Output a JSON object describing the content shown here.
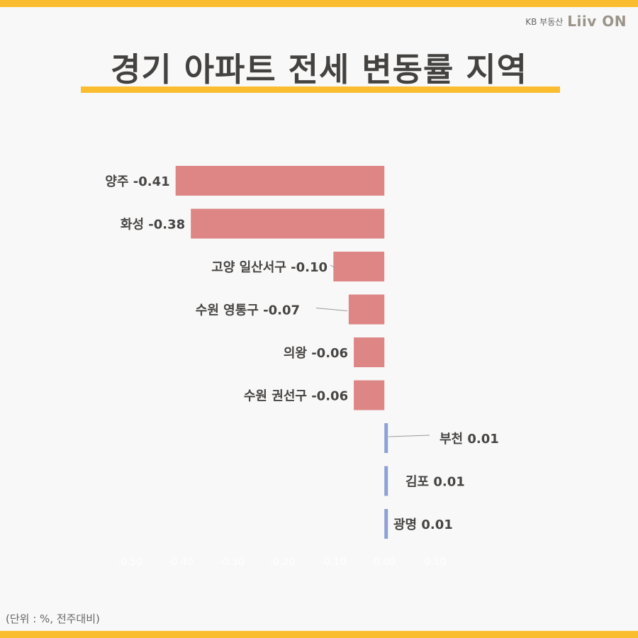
{
  "brand": {
    "sub": "KB 부동산",
    "logo": "Liiv ON"
  },
  "title": "경기 아파트 전세 변동률 지역",
  "footnote": "(단위 : %, 전주대비)",
  "colors": {
    "negative": "#de8585",
    "positive": "#8ea0d6",
    "accent": "#fbbd30"
  },
  "chart_data": {
    "type": "bar",
    "orientation": "horizontal",
    "categories": [
      "양주",
      "화성",
      "고양 일산서구",
      "수원 영통구",
      "의왕",
      "수원 권선구",
      "부천",
      "김포",
      "광명"
    ],
    "values": [
      -0.41,
      -0.38,
      -0.1,
      -0.07,
      -0.06,
      -0.06,
      0.01,
      0.01,
      0.01
    ],
    "data_labels": [
      "양주 -0.41",
      "화성 -0.38",
      "고양 일산서구 -0.10",
      "수원 영통구 -0.07",
      "의왕 -0.06",
      "수원 권선구 -0.06",
      "부천 0.01",
      "김포 0.01",
      "광명 0.01"
    ],
    "xlim": [
      -0.5,
      0.1
    ],
    "xticks": [
      "-0.50",
      "-0.40",
      "-0.30",
      "-0.20",
      "-0.10",
      "0.00",
      "0.10"
    ],
    "title": "경기 아파트 전세 변동률 지역",
    "xlabel": "",
    "ylabel": "",
    "grid": false,
    "legend": "none"
  }
}
